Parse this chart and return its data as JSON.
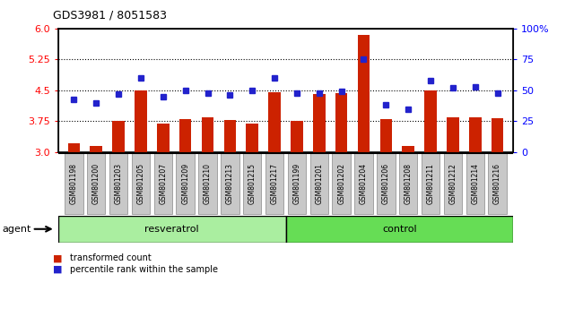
{
  "title": "GDS3981 / 8051583",
  "samples": [
    "GSM801198",
    "GSM801200",
    "GSM801203",
    "GSM801205",
    "GSM801207",
    "GSM801209",
    "GSM801210",
    "GSM801213",
    "GSM801215",
    "GSM801217",
    "GSM801199",
    "GSM801201",
    "GSM801202",
    "GSM801204",
    "GSM801206",
    "GSM801208",
    "GSM801211",
    "GSM801212",
    "GSM801214",
    "GSM801216"
  ],
  "bar_values": [
    3.22,
    3.15,
    3.75,
    4.5,
    3.7,
    3.8,
    3.85,
    3.78,
    3.7,
    4.45,
    3.75,
    4.42,
    4.43,
    5.85,
    3.8,
    3.15,
    4.5,
    3.85,
    3.85,
    3.82
  ],
  "percentile_values": [
    43,
    40,
    47,
    60,
    45,
    50,
    48,
    46,
    50,
    60,
    48,
    48,
    49,
    75,
    38,
    35,
    58,
    52,
    53,
    48
  ],
  "resveratrol_count": 10,
  "control_count": 10,
  "ylim_left": [
    3.0,
    6.0
  ],
  "ylim_right": [
    0,
    100
  ],
  "yticks_left": [
    3.0,
    3.75,
    4.5,
    5.25,
    6.0
  ],
  "yticks_right": [
    0,
    25,
    50,
    75,
    100
  ],
  "ytick_labels_right": [
    "0",
    "25",
    "50",
    "75",
    "100%"
  ],
  "hlines": [
    3.75,
    4.5,
    5.25
  ],
  "bar_color": "#CC2200",
  "point_color": "#2222CC",
  "resv_color": "#AAEEA0",
  "ctrl_color": "#66DD55",
  "bg_color": "#C8C8C8",
  "agent_label": "agent",
  "resv_label": "resveratrol",
  "ctrl_label": "control",
  "legend_bar": "transformed count",
  "legend_point": "percentile rank within the sample"
}
